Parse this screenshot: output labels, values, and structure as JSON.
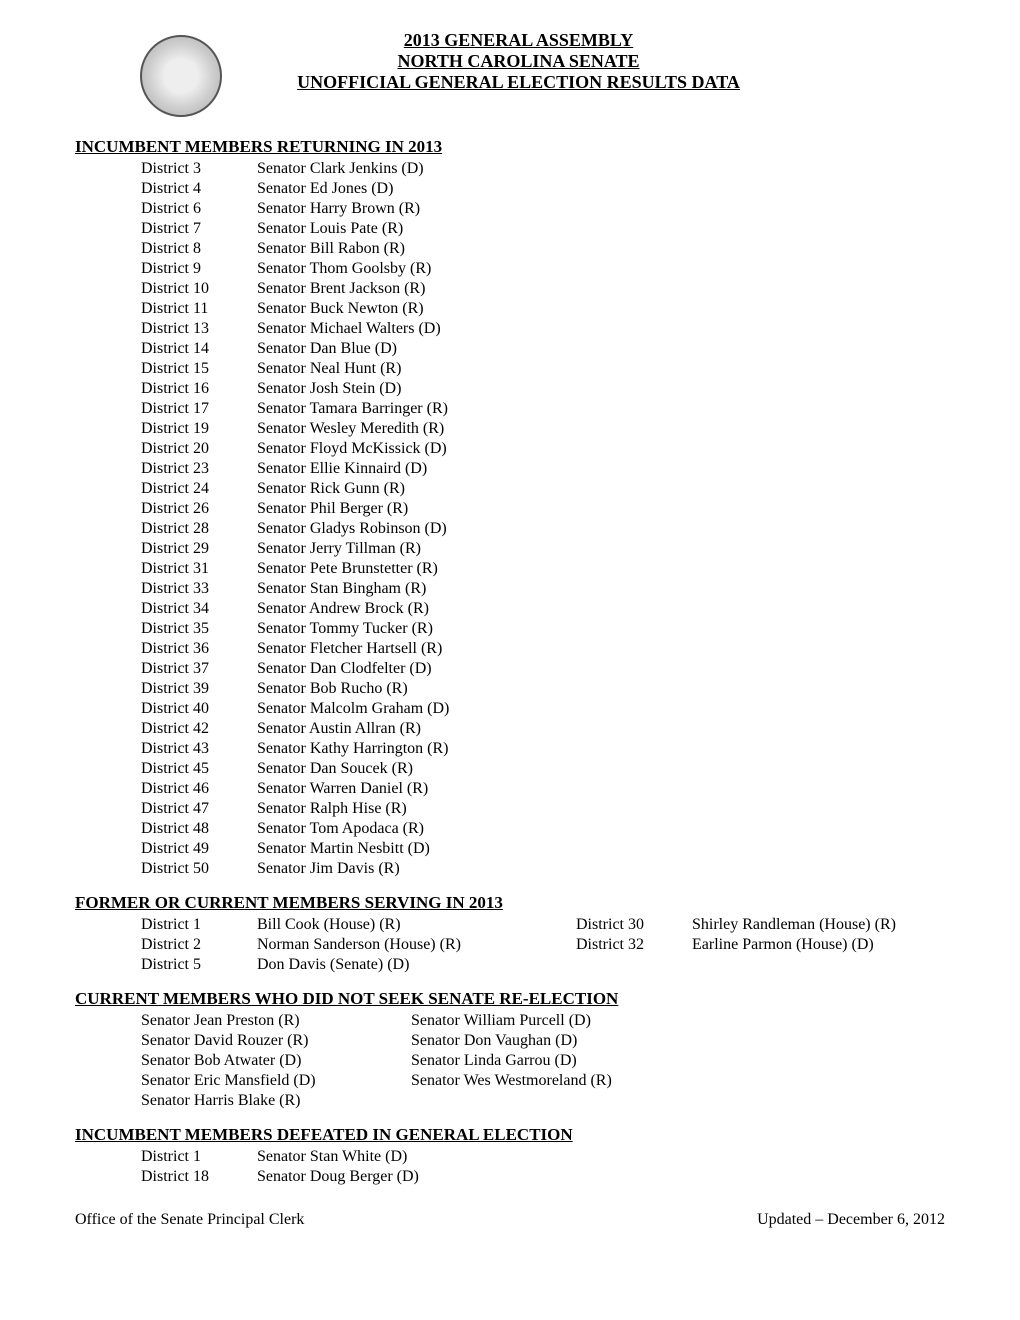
{
  "header": {
    "line1": "2013 GENERAL ASSEMBLY",
    "line2": "NORTH CAROLINA SENATE",
    "line3": "UNOFFICIAL GENERAL ELECTION RESULTS DATA"
  },
  "sections": {
    "incumbents": {
      "title": "INCUMBENT MEMBERS RETURNING IN 2013",
      "rows": [
        {
          "district": "District 3",
          "senator": "Senator Clark Jenkins (D)"
        },
        {
          "district": "District 4",
          "senator": "Senator Ed Jones (D)"
        },
        {
          "district": "District 6",
          "senator": "Senator Harry Brown (R)"
        },
        {
          "district": "District 7",
          "senator": "Senator Louis Pate (R)"
        },
        {
          "district": "District 8",
          "senator": "Senator Bill Rabon (R)"
        },
        {
          "district": "District 9",
          "senator": "Senator Thom Goolsby (R)"
        },
        {
          "district": "District 10",
          "senator": "Senator Brent Jackson (R)"
        },
        {
          "district": "District 11",
          "senator": "Senator Buck Newton (R)"
        },
        {
          "district": "District 13",
          "senator": "Senator Michael Walters (D)"
        },
        {
          "district": "District 14",
          "senator": "Senator Dan Blue (D)"
        },
        {
          "district": "District 15",
          "senator": "Senator Neal Hunt (R)"
        },
        {
          "district": "District 16",
          "senator": "Senator Josh Stein (D)"
        },
        {
          "district": "District 17",
          "senator": "Senator Tamara Barringer (R)"
        },
        {
          "district": "District 19",
          "senator": "Senator Wesley Meredith (R)"
        },
        {
          "district": "District 20",
          "senator": "Senator Floyd McKissick (D)"
        },
        {
          "district": "District 23",
          "senator": "Senator Ellie Kinnaird (D)"
        },
        {
          "district": "District 24",
          "senator": "Senator Rick Gunn (R)"
        },
        {
          "district": "District 26",
          "senator": "Senator Phil Berger (R)"
        },
        {
          "district": "District 28",
          "senator": "Senator Gladys Robinson (D)"
        },
        {
          "district": "District 29",
          "senator": "Senator Jerry Tillman (R)"
        },
        {
          "district": "District 31",
          "senator": "Senator Pete Brunstetter (R)"
        },
        {
          "district": "District 33",
          "senator": "Senator Stan Bingham (R)"
        },
        {
          "district": "District 34",
          "senator": "Senator Andrew Brock (R)"
        },
        {
          "district": "District 35",
          "senator": "Senator Tommy Tucker (R)"
        },
        {
          "district": "District 36",
          "senator": "Senator Fletcher Hartsell (R)"
        },
        {
          "district": "District 37",
          "senator": "Senator Dan Clodfelter (D)"
        },
        {
          "district": "District 39",
          "senator": "Senator Bob Rucho (R)"
        },
        {
          "district": "District 40",
          "senator": "Senator Malcolm Graham (D)"
        },
        {
          "district": "District 42",
          "senator": "Senator Austin Allran (R)"
        },
        {
          "district": "District 43",
          "senator": "Senator Kathy Harrington (R)"
        },
        {
          "district": "District 45",
          "senator": "Senator Dan Soucek (R)"
        },
        {
          "district": "District 46",
          "senator": "Senator Warren Daniel (R)"
        },
        {
          "district": "District 47",
          "senator": "Senator Ralph Hise (R)"
        },
        {
          "district": "District 48",
          "senator": "Senator Tom Apodaca (R)"
        },
        {
          "district": "District 49",
          "senator": "Senator Martin Nesbitt (D)"
        },
        {
          "district": "District 50",
          "senator": "Senator Jim Davis (R)"
        }
      ]
    },
    "former": {
      "title": "FORMER OR CURRENT MEMBERS SERVING IN 2013",
      "left": [
        {
          "district": "District 1",
          "name": "Bill Cook (House) (R)"
        },
        {
          "district": "District 2",
          "name": "Norman Sanderson (House) (R)"
        },
        {
          "district": "District 5",
          "name": "Don Davis (Senate) (D)"
        }
      ],
      "right": [
        {
          "district": "District 30",
          "name": "Shirley Randleman (House) (R)"
        },
        {
          "district": "District 32",
          "name": "Earline Parmon (House) (D)"
        }
      ]
    },
    "noreelect": {
      "title": "CURRENT MEMBERS WHO DID NOT SEEK SENATE RE-ELECTION",
      "left": [
        "Senator Jean Preston (R)",
        "Senator David Rouzer (R)",
        "Senator Bob Atwater (D)",
        "Senator Eric Mansfield (D)",
        "Senator Harris Blake (R)"
      ],
      "right": [
        "Senator William Purcell (D)",
        "Senator Don Vaughan (D)",
        "Senator Linda Garrou (D)",
        "Senator Wes Westmoreland (R)"
      ]
    },
    "defeated": {
      "title": "INCUMBENT MEMBERS DEFEATED IN GENERAL ELECTION",
      "rows": [
        {
          "district": "District 1",
          "senator": "Senator Stan White (D)"
        },
        {
          "district": "District 18",
          "senator": "Senator Doug Berger (D)"
        }
      ]
    }
  },
  "footer": {
    "left": "Office of the Senate Principal Clerk",
    "right": "Updated – December 6, 2012"
  }
}
